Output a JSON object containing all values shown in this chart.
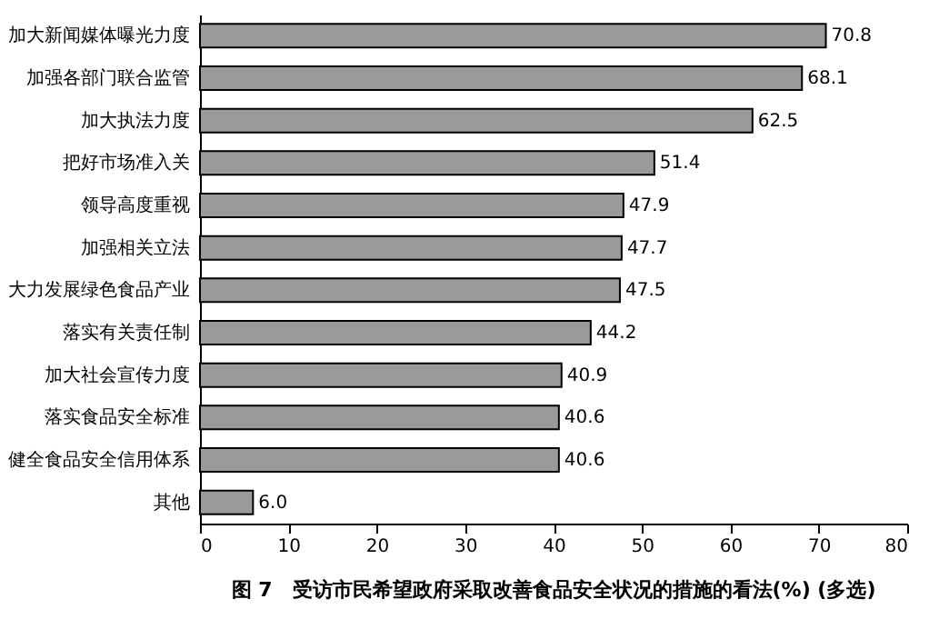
{
  "chart_data": {
    "type": "bar",
    "orientation": "horizontal",
    "title": "图 7　受访市民希望政府采取改善食品安全状况的措施的看法(%) (多选)",
    "categories": [
      "加大新闻媒体曝光力度",
      "加强各部门联合监管",
      "加大执法力度",
      "把好市场准入关",
      "领导高度重视",
      "加强相关立法",
      "大力发展绿色食品产业",
      "落实有关责任制",
      "加大社会宣传力度",
      "落实食品安全标准",
      "健全食品安全信用体系",
      "其他"
    ],
    "values": [
      70.8,
      68.1,
      62.5,
      51.4,
      47.9,
      47.7,
      47.5,
      44.2,
      40.9,
      40.6,
      40.6,
      6.0
    ],
    "value_labels": [
      "70.8",
      "68.1",
      "62.5",
      "51.4",
      "47.9",
      "47.7",
      "47.5",
      "44.2",
      "40.9",
      "40.6",
      "40.6",
      "6.0"
    ],
    "color": "#9a9a9a",
    "xlim": [
      0,
      80
    ],
    "xticks": [
      0,
      10,
      20,
      30,
      40,
      50,
      60,
      70,
      80
    ],
    "grid": false
  }
}
